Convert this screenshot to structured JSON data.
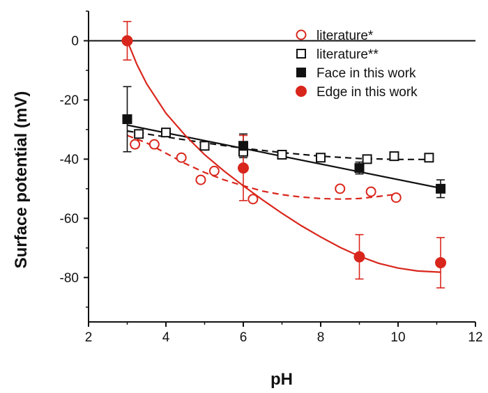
{
  "chart_data": {
    "type": "scatter",
    "xlabel": "pH",
    "ylabel": "Surface potential (mV)",
    "xlim": [
      2,
      12
    ],
    "ylim": [
      -95,
      10
    ],
    "x_ticks": [
      2,
      4,
      6,
      8,
      10,
      12
    ],
    "y_ticks": [
      0,
      -20,
      -40,
      -60,
      -80
    ],
    "reference_line_y": 0,
    "legend_position": "top-right",
    "colors": {
      "red": "#d9261c",
      "black": "#111111"
    },
    "series": [
      {
        "name": "literature*",
        "marker": "open-circle",
        "color": "#d9261c",
        "points": [
          [
            3.2,
            -35
          ],
          [
            3.7,
            -35
          ],
          [
            4.4,
            -39.5
          ],
          [
            4.9,
            -47
          ],
          [
            5.25,
            -44
          ],
          [
            6.25,
            -53.5
          ],
          [
            8.5,
            -50
          ],
          [
            9.3,
            -51
          ],
          [
            9.95,
            -53
          ]
        ],
        "fit": {
          "style": "dashed",
          "points": [
            [
              3.0,
              -32
            ],
            [
              3.5,
              -34.5
            ],
            [
              4,
              -38
            ],
            [
              4.5,
              -41.5
            ],
            [
              5,
              -44.5
            ],
            [
              5.5,
              -47
            ],
            [
              6,
              -49
            ],
            [
              6.5,
              -50.8
            ],
            [
              7,
              -52
            ],
            [
              7.5,
              -52.8
            ],
            [
              8,
              -53.3
            ],
            [
              8.5,
              -53.5
            ],
            [
              9,
              -53.3
            ],
            [
              9.5,
              -52.6
            ],
            [
              10,
              -51.8
            ]
          ]
        }
      },
      {
        "name": "literature**",
        "marker": "open-square",
        "color": "#111111",
        "points": [
          [
            3.3,
            -31.5
          ],
          [
            4.0,
            -31
          ],
          [
            5.0,
            -35.5
          ],
          [
            6.0,
            -37.5
          ],
          [
            7.0,
            -38.5
          ],
          [
            8.0,
            -39.5
          ],
          [
            9.2,
            -40
          ],
          [
            9.9,
            -39
          ],
          [
            10.8,
            -39.5
          ]
        ],
        "fit": {
          "style": "dashed",
          "points": [
            [
              3,
              -30.5
            ],
            [
              4,
              -32.5
            ],
            [
              5,
              -34.5
            ],
            [
              6,
              -36.3
            ],
            [
              7,
              -37.8
            ],
            [
              8,
              -39
            ],
            [
              9,
              -39.8
            ],
            [
              10,
              -40.1
            ],
            [
              10.8,
              -40.1
            ]
          ]
        }
      },
      {
        "name": "Face in this work",
        "marker": "filled-square",
        "color": "#111111",
        "points": [
          [
            3.0,
            -26.5
          ],
          [
            6.0,
            -35.5
          ],
          [
            9.0,
            -43
          ],
          [
            11.1,
            -50
          ]
        ],
        "errors": [
          11,
          4,
          2,
          3
        ],
        "fit": {
          "style": "solid",
          "points": [
            [
              3.0,
              -28.5
            ],
            [
              11.1,
              -49.8
            ]
          ]
        }
      },
      {
        "name": "Edge in this work",
        "marker": "filled-circle",
        "color": "#d9261c",
        "points": [
          [
            3.0,
            0
          ],
          [
            6.0,
            -43
          ],
          [
            9.0,
            -73
          ],
          [
            11.1,
            -75
          ]
        ],
        "errors": [
          6.5,
          11,
          7.5,
          8.5
        ],
        "fit": {
          "style": "solid",
          "points": [
            [
              3.0,
              0
            ],
            [
              3.25,
              -8
            ],
            [
              3.5,
              -14.5
            ],
            [
              4,
              -24.5
            ],
            [
              4.5,
              -32
            ],
            [
              5,
              -38.5
            ],
            [
              5.5,
              -44
            ],
            [
              6,
              -49
            ],
            [
              6.5,
              -53.8
            ],
            [
              7,
              -58.3
            ],
            [
              7.5,
              -62.5
            ],
            [
              8,
              -66.3
            ],
            [
              8.5,
              -69.8
            ],
            [
              9,
              -72.8
            ],
            [
              9.5,
              -75.2
            ],
            [
              10,
              -76.8
            ],
            [
              10.5,
              -77.8
            ],
            [
              11.1,
              -78.2
            ]
          ]
        }
      }
    ]
  }
}
